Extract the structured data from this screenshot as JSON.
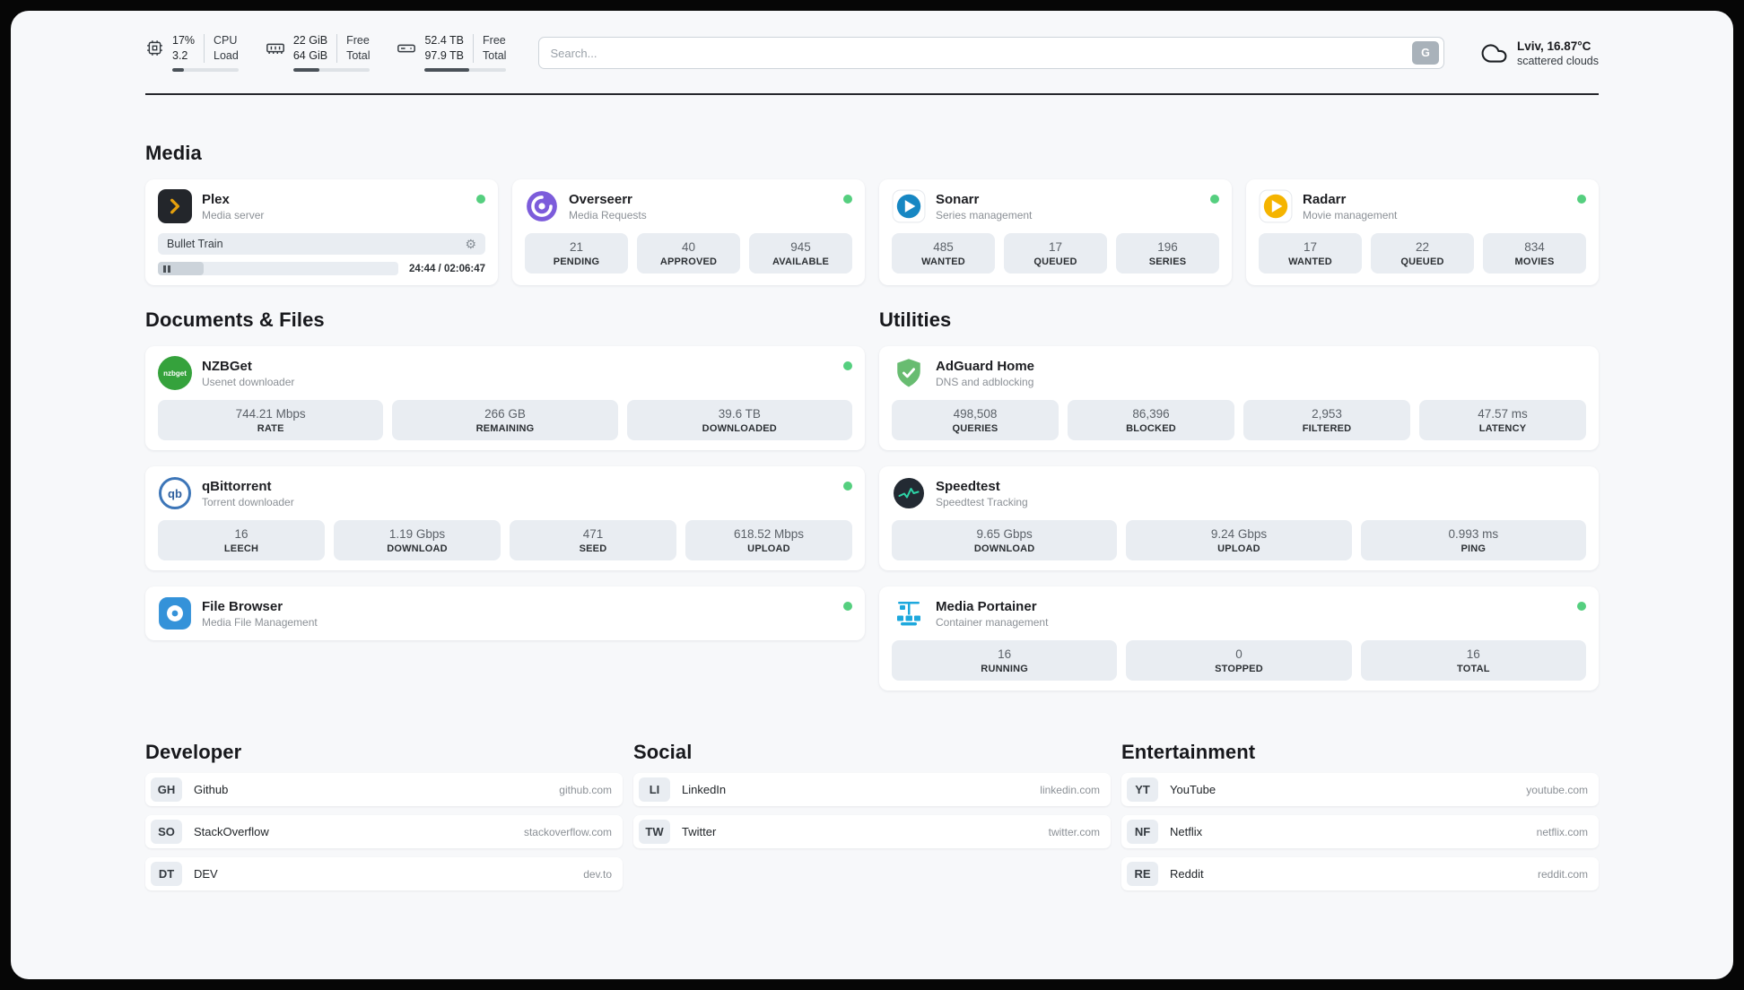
{
  "colors": {
    "status-green": "#55cf7f",
    "statbox-bg": "#e9edf2",
    "page-bg": "#f7f8fa"
  },
  "header": {
    "cpu": {
      "usage": "17%",
      "load": "3.2",
      "label_top": "CPU",
      "label_bottom": "Load",
      "progress": 17
    },
    "ram": {
      "free": "22 GiB",
      "total": "64 GiB",
      "label_top": "Free",
      "label_bottom": "Total",
      "progress": 34
    },
    "disk": {
      "free": "52.4 TB",
      "total": "97.9 TB",
      "label_top": "Free",
      "label_bottom": "Total",
      "progress": 54
    },
    "search": {
      "placeholder": "Search...",
      "button_label": "G"
    },
    "weather": {
      "location": "Lviv, 16.87°C",
      "condition": "scattered clouds"
    }
  },
  "sections": {
    "media": {
      "title": "Media",
      "apps": [
        {
          "name": "Plex",
          "subtitle": "Media server",
          "online": true,
          "player": {
            "track": "Bullet Train",
            "time": "24:44 / 02:06:47",
            "progress": 19
          }
        },
        {
          "name": "Overseerr",
          "subtitle": "Media Requests",
          "online": true,
          "stats": [
            {
              "value": "21",
              "label": "PENDING"
            },
            {
              "value": "40",
              "label": "APPROVED"
            },
            {
              "value": "945",
              "label": "AVAILABLE"
            }
          ]
        },
        {
          "name": "Sonarr",
          "subtitle": "Series management",
          "online": true,
          "stats": [
            {
              "value": "485",
              "label": "WANTED"
            },
            {
              "value": "17",
              "label": "QUEUED"
            },
            {
              "value": "196",
              "label": "SERIES"
            }
          ]
        },
        {
          "name": "Radarr",
          "subtitle": "Movie management",
          "online": true,
          "stats": [
            {
              "value": "17",
              "label": "WANTED"
            },
            {
              "value": "22",
              "label": "QUEUED"
            },
            {
              "value": "834",
              "label": "MOVIES"
            }
          ]
        }
      ]
    },
    "documents": {
      "title": "Documents & Files",
      "apps": [
        {
          "name": "NZBGet",
          "subtitle": "Usenet downloader",
          "online": true,
          "stats": [
            {
              "value": "744.21 Mbps",
              "label": "RATE"
            },
            {
              "value": "266 GB",
              "label": "REMAINING"
            },
            {
              "value": "39.6 TB",
              "label": "DOWNLOADED"
            }
          ]
        },
        {
          "name": "qBittorrent",
          "subtitle": "Torrent downloader",
          "online": true,
          "stats": [
            {
              "value": "16",
              "label": "LEECH"
            },
            {
              "value": "1.19 Gbps",
              "label": "DOWNLOAD"
            },
            {
              "value": "471",
              "label": "SEED"
            },
            {
              "value": "618.52 Mbps",
              "label": "UPLOAD"
            }
          ]
        },
        {
          "name": "File Browser",
          "subtitle": "Media File Management",
          "online": true
        }
      ]
    },
    "utilities": {
      "title": "Utilities",
      "apps": [
        {
          "name": "AdGuard Home",
          "subtitle": "DNS and adblocking",
          "online": false,
          "stats": [
            {
              "value": "498,508",
              "label": "QUERIES"
            },
            {
              "value": "86,396",
              "label": "BLOCKED"
            },
            {
              "value": "2,953",
              "label": "FILTERED"
            },
            {
              "value": "47.57 ms",
              "label": "LATENCY"
            }
          ]
        },
        {
          "name": "Speedtest",
          "subtitle": "Speedtest Tracking",
          "online": false,
          "stats": [
            {
              "value": "9.65 Gbps",
              "label": "DOWNLOAD"
            },
            {
              "value": "9.24 Gbps",
              "label": "UPLOAD"
            },
            {
              "value": "0.993 ms",
              "label": "PING"
            }
          ]
        },
        {
          "name": "Media Portainer",
          "subtitle": "Container management",
          "online": true,
          "stats": [
            {
              "value": "16",
              "label": "RUNNING"
            },
            {
              "value": "0",
              "label": "STOPPED"
            },
            {
              "value": "16",
              "label": "TOTAL"
            }
          ]
        }
      ]
    },
    "bookmarks": [
      {
        "title": "Developer",
        "items": [
          {
            "abbr": "GH",
            "name": "Github",
            "url": "github.com"
          },
          {
            "abbr": "SO",
            "name": "StackOverflow",
            "url": "stackoverflow.com"
          },
          {
            "abbr": "DT",
            "name": "DEV",
            "url": "dev.to"
          }
        ]
      },
      {
        "title": "Social",
        "items": [
          {
            "abbr": "LI",
            "name": "LinkedIn",
            "url": "linkedin.com"
          },
          {
            "abbr": "TW",
            "name": "Twitter",
            "url": "twitter.com"
          }
        ]
      },
      {
        "title": "Entertainment",
        "items": [
          {
            "abbr": "YT",
            "name": "YouTube",
            "url": "youtube.com"
          },
          {
            "abbr": "NF",
            "name": "Netflix",
            "url": "netflix.com"
          },
          {
            "abbr": "RE",
            "name": "Reddit",
            "url": "reddit.com"
          }
        ]
      }
    ]
  }
}
